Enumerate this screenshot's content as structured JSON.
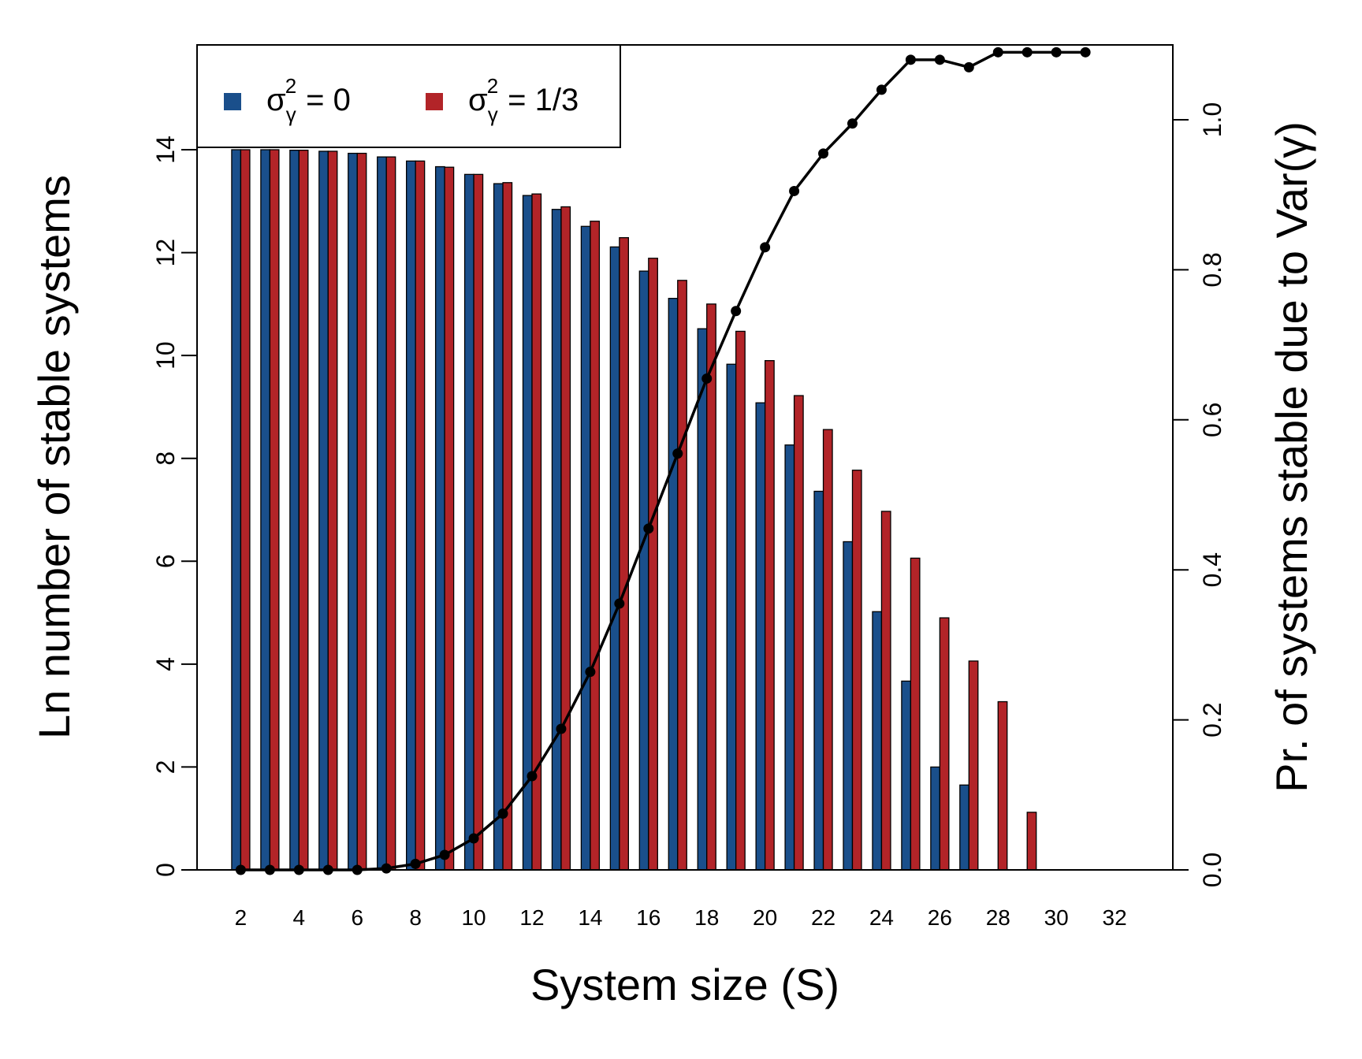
{
  "chart_data": {
    "type": "bar",
    "xlabel": "System size (S)",
    "ylabel": "Ln number of stable systems",
    "y2label": "Pr. of systems stable due to Var(γ)",
    "x": [
      2,
      3,
      4,
      5,
      6,
      7,
      8,
      9,
      10,
      11,
      12,
      13,
      14,
      15,
      16,
      17,
      18,
      19,
      20,
      21,
      22,
      23,
      24,
      25,
      26,
      27,
      28,
      29,
      30,
      31
    ],
    "xticks": [
      2,
      4,
      6,
      8,
      10,
      12,
      14,
      16,
      18,
      20,
      22,
      24,
      26,
      28,
      30,
      32
    ],
    "xlim": [
      0.5,
      34.0
    ],
    "ylim": [
      0,
      16
    ],
    "yticks": [
      0,
      2,
      4,
      6,
      8,
      10,
      12,
      14
    ],
    "y2lim": [
      0,
      1.1
    ],
    "y2ticks": [
      "0.0",
      "0.2",
      "0.4",
      "0.6",
      "0.8",
      "1.0"
    ],
    "series": [
      {
        "name": "σγ2 = 0",
        "legend_symbol": "σ",
        "legend_sub": "γ",
        "legend_sup": "2",
        "legend_value": "= 0",
        "color": "#1a4f8b",
        "values": [
          14.0,
          14.0,
          13.99,
          13.97,
          13.93,
          13.86,
          13.78,
          13.67,
          13.52,
          13.34,
          13.11,
          12.84,
          12.51,
          12.11,
          11.64,
          11.11,
          10.52,
          9.83,
          9.08,
          8.26,
          7.36,
          6.38,
          5.02,
          3.67,
          2.0,
          1.65,
          0,
          0,
          0,
          0
        ]
      },
      {
        "name": "σγ2 = 1/3",
        "legend_symbol": "σ",
        "legend_sub": "γ",
        "legend_sup": "2",
        "legend_value": "= 1/3",
        "color": "#b22428",
        "values": [
          14.0,
          14.0,
          13.99,
          13.97,
          13.93,
          13.86,
          13.78,
          13.66,
          13.52,
          13.36,
          13.14,
          12.89,
          12.61,
          12.29,
          11.89,
          11.46,
          11.0,
          10.47,
          9.9,
          9.22,
          8.56,
          7.77,
          6.97,
          6.06,
          4.9,
          4.06,
          3.27,
          1.12,
          0,
          0
        ]
      },
      {
        "name": "Pr. of systems stable due to Var(γ)",
        "type": "line",
        "axis": "right",
        "color": "#000000",
        "values": [
          0,
          0,
          0,
          0,
          0,
          0.002,
          0.008,
          0.02,
          0.042,
          0.075,
          0.125,
          0.188,
          0.264,
          0.355,
          0.455,
          0.555,
          0.655,
          0.745,
          0.83,
          0.905,
          0.955,
          0.995,
          1.04,
          1.08,
          1.08,
          1.07,
          1.09,
          1.09,
          1.09,
          1.09
        ]
      }
    ],
    "legend": "top-left",
    "grid": false
  }
}
